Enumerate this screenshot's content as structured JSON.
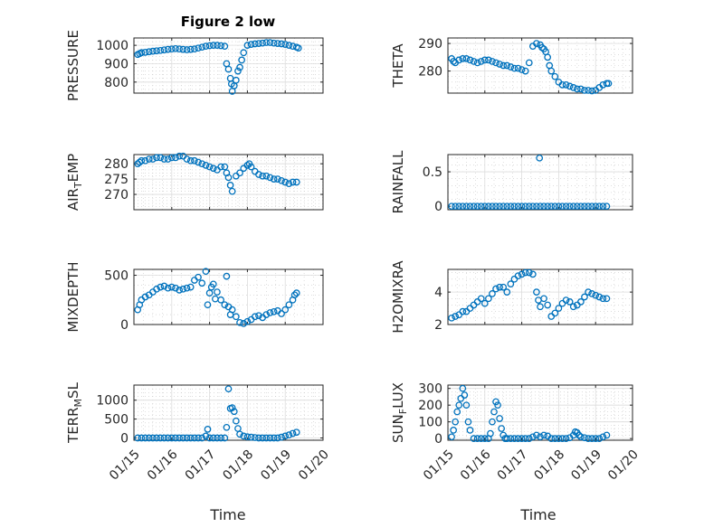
{
  "figure": {
    "title": "Figure 2 low"
  },
  "chart_data": [
    {
      "type": "scatter",
      "ylabel": "PRESSURE",
      "xlabel": "",
      "xlim": [
        0,
        5
      ],
      "ylim": [
        740,
        1040
      ],
      "yticks": [
        800,
        900,
        1000
      ],
      "xticks": [
        0,
        1,
        2,
        3,
        4,
        5
      ],
      "xticklabels": [],
      "series": [
        {
          "color": "#0072BD",
          "x": [
            0.1,
            0.15,
            0.2,
            0.3,
            0.4,
            0.5,
            0.6,
            0.7,
            0.8,
            0.9,
            1.0,
            1.1,
            1.2,
            1.3,
            1.4,
            1.5,
            1.6,
            1.7,
            1.8,
            1.9,
            2.0,
            2.1,
            2.2,
            2.3,
            2.4,
            2.45,
            2.5,
            2.55,
            2.58,
            2.6,
            2.65,
            2.7,
            2.75,
            2.8,
            2.85,
            2.9,
            3.0,
            3.1,
            3.2,
            3.3,
            3.4,
            3.5,
            3.6,
            3.7,
            3.8,
            3.9,
            4.0,
            4.1,
            4.2,
            4.3,
            4.35
          ],
          "y": [
            950,
            955,
            960,
            962,
            965,
            968,
            970,
            972,
            975,
            978,
            980,
            982,
            980,
            978,
            976,
            978,
            980,
            985,
            990,
            995,
            998,
            1000,
            1000,
            998,
            995,
            900,
            870,
            820,
            790,
            750,
            780,
            810,
            860,
            880,
            920,
            960,
            1000,
            1005,
            1008,
            1010,
            1012,
            1015,
            1015,
            1012,
            1010,
            1008,
            1005,
            1000,
            995,
            990,
            985
          ]
        }
      ]
    },
    {
      "type": "scatter",
      "ylabel": "THETA",
      "xlabel": "",
      "xlim": [
        0,
        5
      ],
      "ylim": [
        272,
        292
      ],
      "yticks": [
        280,
        290
      ],
      "xticks": [
        0,
        1,
        2,
        3,
        4,
        5
      ],
      "xticklabels": [],
      "series": [
        {
          "color": "#0072BD",
          "x": [
            0.1,
            0.15,
            0.2,
            0.3,
            0.4,
            0.5,
            0.6,
            0.7,
            0.8,
            0.9,
            1.0,
            1.1,
            1.2,
            1.3,
            1.4,
            1.5,
            1.6,
            1.7,
            1.8,
            1.9,
            2.0,
            2.1,
            2.2,
            2.3,
            2.4,
            2.5,
            2.55,
            2.6,
            2.65,
            2.7,
            2.75,
            2.8,
            2.9,
            3.0,
            3.1,
            3.2,
            3.3,
            3.4,
            3.5,
            3.6,
            3.7,
            3.8,
            3.9,
            4.0,
            4.1,
            4.2,
            4.3,
            4.35
          ],
          "y": [
            284.5,
            283.5,
            283,
            284,
            284.5,
            284.5,
            284,
            283.5,
            283,
            283.5,
            284,
            284,
            283.5,
            283,
            282.5,
            282,
            282,
            281.5,
            281,
            281,
            280.5,
            280,
            283,
            289,
            290,
            289.5,
            288.5,
            288,
            287,
            285,
            282,
            280,
            278,
            276,
            275,
            275,
            274.5,
            274,
            273.5,
            273.5,
            273,
            273,
            272.8,
            273,
            274,
            275,
            275.5,
            275.5
          ]
        }
      ]
    },
    {
      "type": "scatter",
      "ylabel": "AIR_TEMP",
      "xlabel": "",
      "xlim": [
        0,
        5
      ],
      "ylim": [
        265,
        283
      ],
      "yticks": [
        270,
        275,
        280
      ],
      "xticks": [
        0,
        1,
        2,
        3,
        4,
        5
      ],
      "xticklabels": [],
      "series": [
        {
          "color": "#0072BD",
          "x": [
            0.1,
            0.15,
            0.2,
            0.3,
            0.4,
            0.5,
            0.6,
            0.7,
            0.8,
            0.9,
            1.0,
            1.1,
            1.2,
            1.3,
            1.4,
            1.5,
            1.6,
            1.7,
            1.8,
            1.9,
            2.0,
            2.1,
            2.2,
            2.3,
            2.4,
            2.45,
            2.5,
            2.55,
            2.6,
            2.7,
            2.8,
            2.9,
            3.0,
            3.05,
            3.1,
            3.2,
            3.3,
            3.4,
            3.5,
            3.6,
            3.7,
            3.8,
            3.9,
            4.0,
            4.1,
            4.2,
            4.3
          ],
          "y": [
            280,
            280.5,
            281,
            281,
            281.5,
            281.5,
            282,
            282,
            281.5,
            281.5,
            282,
            282,
            282.5,
            282.5,
            281.5,
            281,
            281,
            280.5,
            280,
            279.5,
            279,
            278.5,
            278,
            279,
            279,
            277,
            275.5,
            273,
            271,
            276,
            277,
            278.5,
            279.5,
            280,
            279,
            277.5,
            276.5,
            276,
            276,
            275.5,
            275,
            275,
            274.5,
            274,
            273.5,
            274,
            274
          ]
        }
      ]
    },
    {
      "type": "scatter",
      "ylabel": "RAINFALL",
      "xlabel": "",
      "xlim": [
        0,
        5
      ],
      "ylim": [
        -0.05,
        0.75
      ],
      "yticks": [
        0,
        0.5
      ],
      "xticks": [
        0,
        1,
        2,
        3,
        4,
        5
      ],
      "xticklabels": [],
      "series": [
        {
          "color": "#0072BD",
          "x": [
            0.1,
            0.2,
            0.3,
            0.4,
            0.5,
            0.6,
            0.7,
            0.8,
            0.9,
            1.0,
            1.1,
            1.2,
            1.3,
            1.4,
            1.5,
            1.6,
            1.7,
            1.8,
            1.9,
            2.0,
            2.1,
            2.2,
            2.3,
            2.4,
            2.5,
            2.6,
            2.7,
            2.8,
            2.9,
            3.0,
            3.1,
            3.2,
            3.3,
            3.4,
            3.5,
            3.6,
            3.7,
            3.8,
            3.9,
            4.0,
            4.1,
            4.2,
            4.3,
            2.48
          ],
          "y": [
            0,
            0,
            0,
            0,
            0,
            0,
            0,
            0,
            0,
            0,
            0,
            0,
            0,
            0,
            0,
            0,
            0,
            0,
            0,
            0,
            0,
            0,
            0,
            0,
            0,
            0,
            0,
            0,
            0,
            0,
            0,
            0,
            0,
            0,
            0,
            0,
            0,
            0,
            0,
            0,
            0,
            0,
            0,
            0.7
          ]
        }
      ]
    },
    {
      "type": "scatter",
      "ylabel": "MIXDEPTH",
      "xlabel": "",
      "xlim": [
        0,
        5
      ],
      "ylim": [
        0,
        560
      ],
      "yticks": [
        0,
        500
      ],
      "xticks": [
        0,
        1,
        2,
        3,
        4,
        5
      ],
      "xticklabels": [],
      "series": [
        {
          "color": "#0072BD",
          "x": [
            0.1,
            0.15,
            0.2,
            0.3,
            0.4,
            0.5,
            0.6,
            0.7,
            0.8,
            0.9,
            1.0,
            1.1,
            1.2,
            1.3,
            1.4,
            1.5,
            1.6,
            1.7,
            1.8,
            1.9,
            1.95,
            2.0,
            2.05,
            2.1,
            2.15,
            2.2,
            2.3,
            2.4,
            2.45,
            2.5,
            2.55,
            2.6,
            2.7,
            2.8,
            2.9,
            3.0,
            3.1,
            3.2,
            3.3,
            3.4,
            3.5,
            3.6,
            3.7,
            3.8,
            3.9,
            4.0,
            4.1,
            4.2,
            4.25,
            4.3
          ],
          "y": [
            150,
            200,
            250,
            280,
            300,
            330,
            360,
            380,
            390,
            370,
            380,
            370,
            350,
            360,
            370,
            380,
            450,
            480,
            420,
            540,
            200,
            320,
            380,
            410,
            260,
            330,
            250,
            200,
            490,
            180,
            100,
            150,
            80,
            20,
            10,
            30,
            50,
            80,
            90,
            70,
            100,
            120,
            130,
            140,
            110,
            150,
            200,
            250,
            300,
            320
          ]
        }
      ]
    },
    {
      "type": "scatter",
      "ylabel": "H2OMIXRA",
      "xlabel": "",
      "xlim": [
        0,
        5
      ],
      "ylim": [
        2,
        5.4
      ],
      "yticks": [
        2,
        4
      ],
      "xticks": [
        0,
        1,
        2,
        3,
        4,
        5
      ],
      "xticklabels": [],
      "series": [
        {
          "color": "#0072BD",
          "x": [
            0.1,
            0.2,
            0.3,
            0.4,
            0.5,
            0.6,
            0.7,
            0.8,
            0.9,
            1.0,
            1.1,
            1.2,
            1.3,
            1.4,
            1.5,
            1.6,
            1.7,
            1.8,
            1.9,
            2.0,
            2.1,
            2.2,
            2.3,
            2.4,
            2.45,
            2.5,
            2.6,
            2.7,
            2.8,
            2.9,
            3.0,
            3.1,
            3.2,
            3.3,
            3.4,
            3.5,
            3.6,
            3.7,
            3.8,
            3.9,
            4.0,
            4.1,
            4.2,
            4.3
          ],
          "y": [
            2.4,
            2.5,
            2.6,
            2.8,
            2.8,
            3.0,
            3.2,
            3.4,
            3.6,
            3.3,
            3.6,
            3.9,
            4.2,
            4.3,
            4.3,
            4.0,
            4.5,
            4.8,
            5.0,
            5.1,
            5.2,
            5.2,
            5.1,
            4.0,
            3.5,
            3.1,
            3.6,
            3.2,
            2.5,
            2.7,
            3.0,
            3.3,
            3.5,
            3.4,
            3.1,
            3.2,
            3.4,
            3.7,
            4.0,
            3.9,
            3.8,
            3.7,
            3.6,
            3.6
          ]
        }
      ]
    },
    {
      "type": "scatter",
      "ylabel": "TERR_MSL",
      "xlabel": "",
      "xlim": [
        0,
        5
      ],
      "ylim": [
        -60,
        1400
      ],
      "yticks": [
        0,
        500,
        1000
      ],
      "xticks": [
        0,
        1,
        2,
        3,
        4,
        5
      ],
      "xticklabels": [
        "01/15",
        "01/16",
        "01/17",
        "01/18",
        "01/19",
        "01/20"
      ],
      "series": [
        {
          "color": "#0072BD",
          "x": [
            0.1,
            0.2,
            0.3,
            0.4,
            0.5,
            0.6,
            0.7,
            0.8,
            0.9,
            1.0,
            1.1,
            1.2,
            1.3,
            1.4,
            1.5,
            1.6,
            1.7,
            1.8,
            1.9,
            1.95,
            2.0,
            2.1,
            2.2,
            2.3,
            2.4,
            2.45,
            2.5,
            2.55,
            2.6,
            2.65,
            2.7,
            2.75,
            2.8,
            2.9,
            3.0,
            3.1,
            3.2,
            3.3,
            3.4,
            3.5,
            3.6,
            3.7,
            3.8,
            3.9,
            4.0,
            4.1,
            4.2,
            4.3
          ],
          "y": [
            0,
            0,
            0,
            0,
            0,
            0,
            0,
            0,
            0,
            0,
            0,
            0,
            0,
            0,
            0,
            0,
            0,
            0,
            50,
            230,
            0,
            0,
            0,
            0,
            0,
            280,
            1300,
            780,
            800,
            700,
            450,
            250,
            100,
            50,
            30,
            20,
            10,
            0,
            0,
            0,
            0,
            0,
            0,
            20,
            50,
            80,
            120,
            150
          ]
        }
      ]
    },
    {
      "type": "scatter",
      "ylabel": "SUN_FLUX",
      "xlabel": "",
      "xlim": [
        0,
        5
      ],
      "ylim": [
        -10,
        320
      ],
      "yticks": [
        0,
        100,
        200,
        300
      ],
      "xticks": [
        0,
        1,
        2,
        3,
        4,
        5
      ],
      "xticklabels": [
        "01/15",
        "01/16",
        "01/17",
        "01/18",
        "01/19",
        "01/20"
      ],
      "series": [
        {
          "color": "#0072BD",
          "x": [
            0.1,
            0.15,
            0.2,
            0.25,
            0.3,
            0.35,
            0.4,
            0.45,
            0.5,
            0.55,
            0.6,
            0.7,
            0.8,
            0.9,
            1.0,
            1.1,
            1.15,
            1.2,
            1.25,
            1.3,
            1.35,
            1.4,
            1.45,
            1.5,
            1.55,
            1.6,
            1.7,
            1.8,
            1.9,
            2.0,
            2.1,
            2.2,
            2.3,
            2.4,
            2.5,
            2.6,
            2.7,
            2.8,
            2.9,
            3.0,
            3.1,
            3.2,
            3.3,
            3.4,
            3.45,
            3.5,
            3.55,
            3.6,
            3.7,
            3.8,
            3.9,
            4.0,
            4.1,
            4.2,
            4.3
          ],
          "y": [
            10,
            50,
            100,
            160,
            200,
            240,
            300,
            260,
            200,
            100,
            50,
            0,
            0,
            0,
            0,
            0,
            30,
            100,
            160,
            220,
            200,
            120,
            60,
            20,
            0,
            0,
            0,
            0,
            0,
            0,
            0,
            0,
            10,
            20,
            10,
            20,
            15,
            0,
            0,
            0,
            0,
            0,
            5,
            20,
            40,
            35,
            20,
            10,
            5,
            0,
            0,
            0,
            0,
            10,
            20
          ]
        }
      ]
    }
  ],
  "axes_common": {
    "xlabel": "Time",
    "grid": true,
    "minor_grid": true
  }
}
